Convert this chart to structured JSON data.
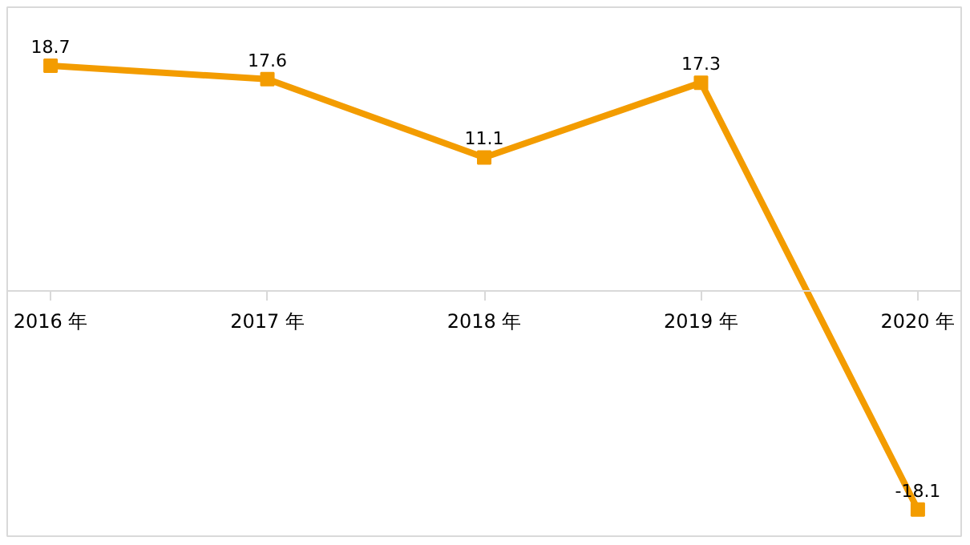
{
  "chart_data": {
    "type": "line",
    "categories": [
      "2016 年",
      "2017 年",
      "2018 年",
      "2019 年",
      "2020 年"
    ],
    "series": [
      {
        "color": "#f39c00",
        "values": [
          18.7,
          17.6,
          11.1,
          17.3,
          -18.1
        ]
      }
    ],
    "data_labels": true,
    "marker": "square",
    "line_style": "solid",
    "grid": false
  }
}
